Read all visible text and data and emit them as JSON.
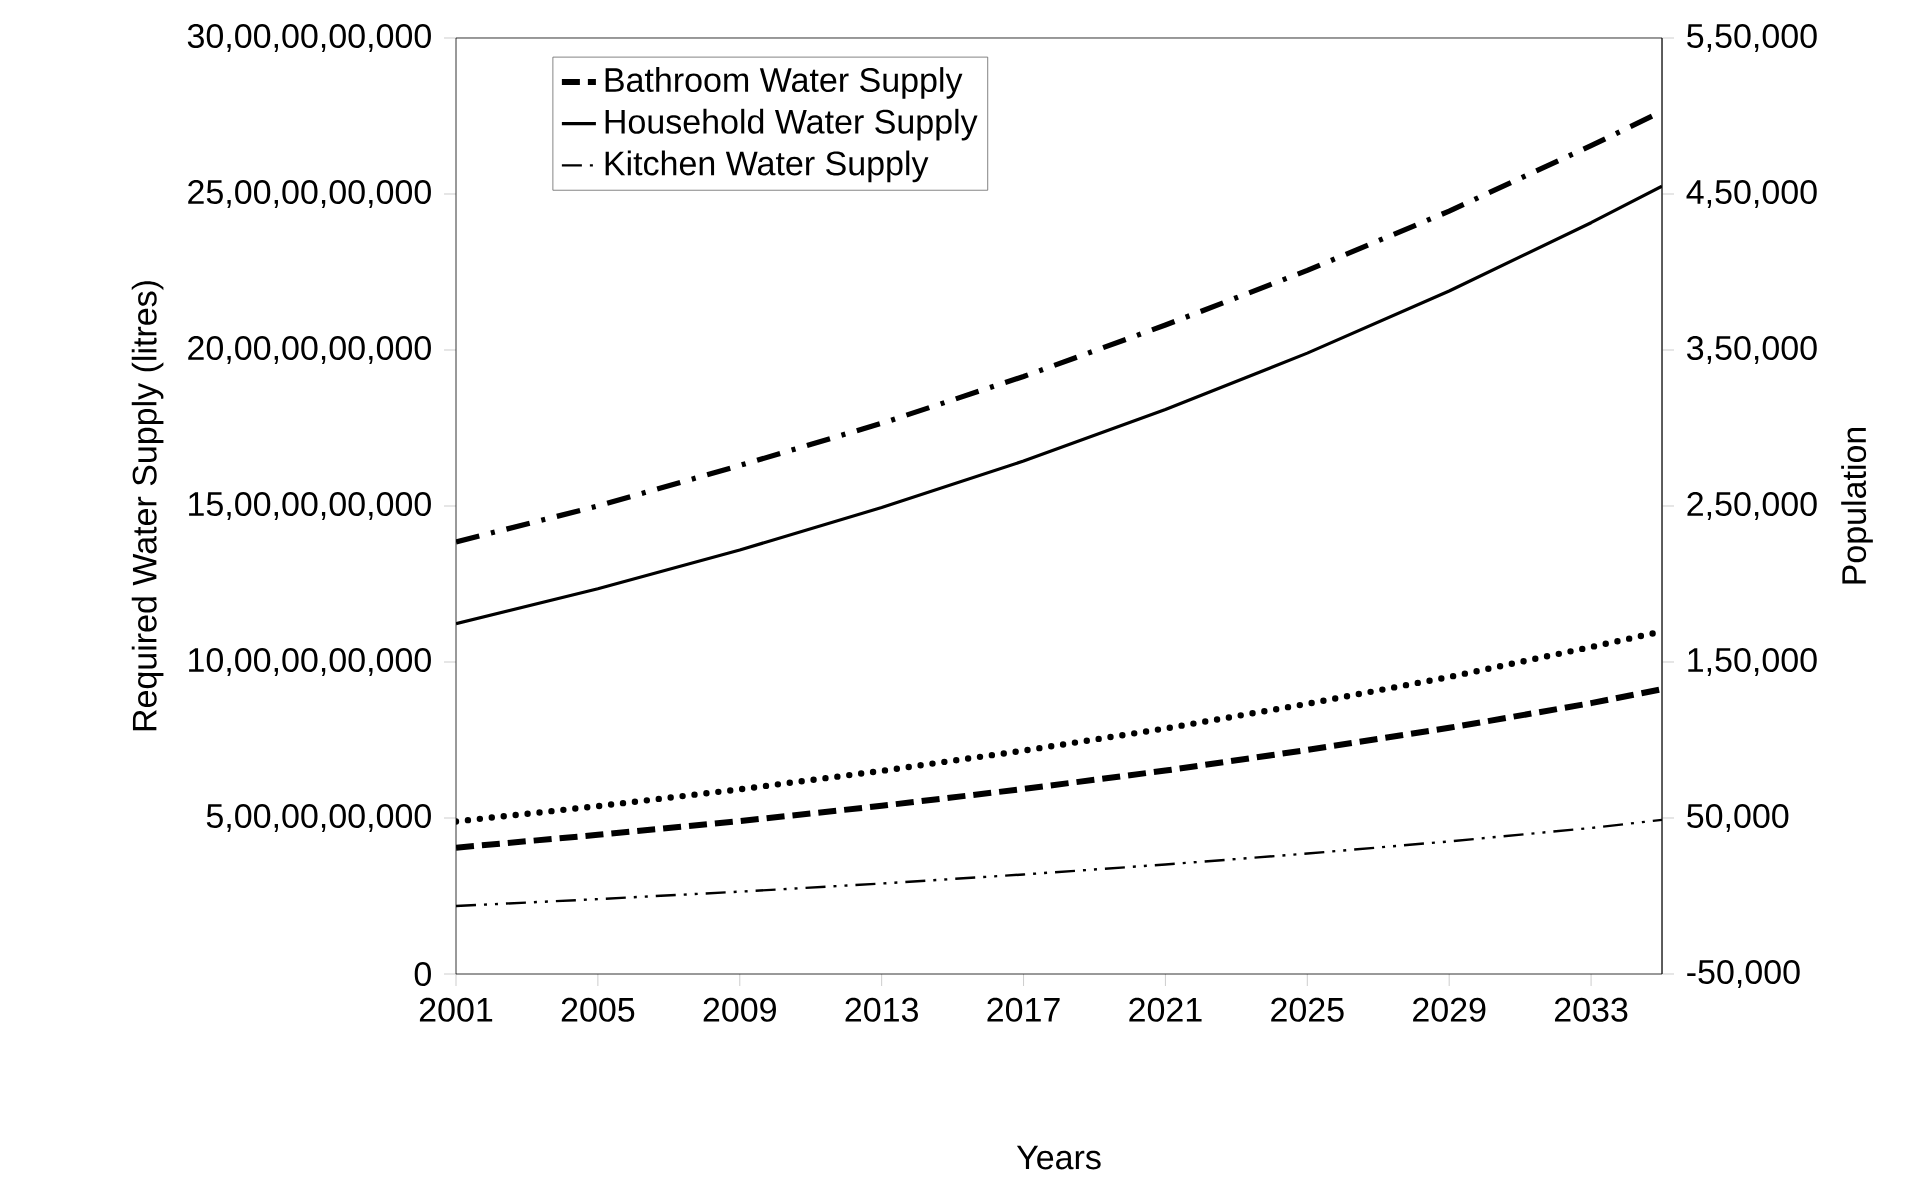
{
  "chart_data": {
    "type": "line",
    "xlabel": "Years",
    "ylabel": "Required Water Supply (litres)",
    "y2label": "Population",
    "legend": "top left",
    "x": [
      2001,
      2005,
      2009,
      2013,
      2017,
      2021,
      2025,
      2029,
      2033,
      2035
    ],
    "xlim": [
      2001,
      2035
    ],
    "xticks": [
      2001,
      2005,
      2009,
      2013,
      2017,
      2021,
      2025,
      2029,
      2033
    ],
    "ylim": [
      0,
      30000000000
    ],
    "yticks": [
      {
        "value": 0,
        "label": "0"
      },
      {
        "value": 5000000000,
        "label": "5,00,00,00,000"
      },
      {
        "value": 10000000000,
        "label": "10,00,00,00,000"
      },
      {
        "value": 15000000000,
        "label": "15,00,00,00,000"
      },
      {
        "value": 20000000000,
        "label": "20,00,00,00,000"
      },
      {
        "value": 25000000000,
        "label": "25,00,00,00,000"
      },
      {
        "value": 30000000000,
        "label": "30,00,00,00,000"
      }
    ],
    "y2lim": [
      -50000,
      550000
    ],
    "y2ticks": [
      {
        "value": -50000,
        "label": "-50,000"
      },
      {
        "value": 50000,
        "label": "50,000"
      },
      {
        "value": 150000,
        "label": "1,50,000"
      },
      {
        "value": 250000,
        "label": "2,50,000"
      },
      {
        "value": 350000,
        "label": "3,50,000"
      },
      {
        "value": 450000,
        "label": "4,50,000"
      },
      {
        "value": 550000,
        "label": "5,50,000"
      }
    ],
    "series": [
      {
        "name": "Bathroom Water Supply",
        "color": "#000000",
        "line_style": "dashed",
        "values": [
          4050000000,
          4460000000,
          4900000000,
          5390000000,
          5930000000,
          6520000000,
          7180000000,
          7890000000,
          8680000000,
          9130000000
        ]
      },
      {
        "name": "Household Water Supply",
        "color": "#000000",
        "line_style": "solid",
        "values": [
          11230000000,
          12350000000,
          13590000000,
          14950000000,
          16440000000,
          18090000000,
          19900000000,
          21890000000,
          24080000000,
          25250000000
        ]
      },
      {
        "name": "Kitchen Water Supply",
        "color": "#000000",
        "line_style": "dashdotdot",
        "values": [
          2180000000,
          2400000000,
          2640000000,
          2900000000,
          3190000000,
          3510000000,
          3860000000,
          4250000000,
          4680000000,
          4940000000
        ]
      },
      {
        "color": "#000000",
        "line_style": "dotted",
        "values": [
          4890000000,
          5380000000,
          5920000000,
          6510000000,
          7160000000,
          7870000000,
          8660000000,
          9520000000,
          10480000000,
          10980000000
        ]
      },
      {
        "color": "#000000",
        "line_style": "dashdot",
        "axis": "y2",
        "values": [
          227000,
          250000,
          276000,
          303000,
          333000,
          366000,
          401000,
          439000,
          481000,
          503000
        ]
      }
    ]
  }
}
